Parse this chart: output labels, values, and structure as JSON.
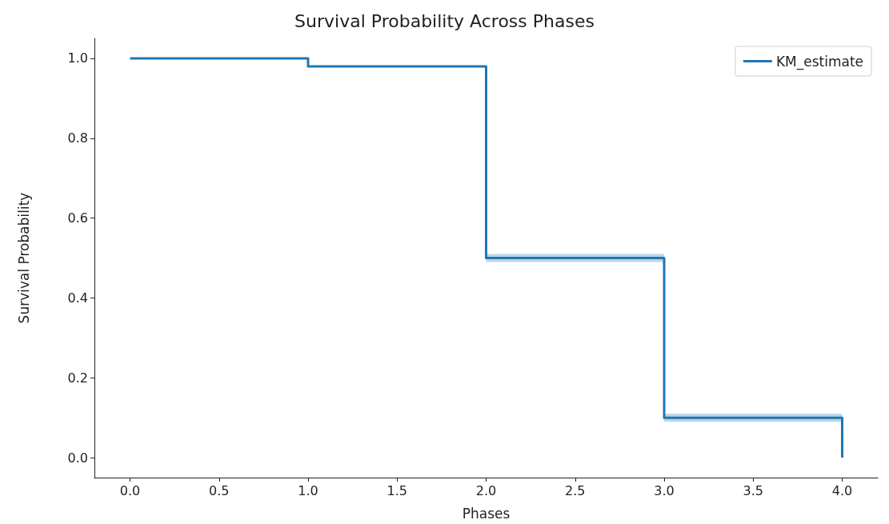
{
  "chart_data": {
    "type": "step",
    "title": "Survival Probability Across Phases",
    "xlabel": "Phases",
    "ylabel": "Survival Probability",
    "x": [
      0,
      1,
      2,
      3,
      4
    ],
    "series": [
      {
        "name": "KM_estimate",
        "color": "#1f77b4",
        "values": [
          1,
          0.98,
          0.5,
          0.1,
          0
        ],
        "lower": [
          1,
          0.98,
          0.49,
          0.09,
          0
        ],
        "upper": [
          1,
          0.98,
          0.51,
          0.11,
          0
        ]
      }
    ],
    "xlim": [
      -0.2,
      4.2
    ],
    "xticks": [
      {
        "value": 0,
        "label": "0.0"
      },
      0.5,
      {
        "value": 1,
        "label": "1.0"
      },
      1.5,
      {
        "value": 2,
        "label": "2.0"
      },
      2.5,
      {
        "value": 3,
        "label": "3.0"
      },
      3.5,
      {
        "value": 4,
        "label": "4.0"
      }
    ],
    "ylim": [
      -0.05,
      1.05
    ],
    "yticks": [
      {
        "value": 0,
        "label": "0.0"
      },
      0.2,
      0.4,
      0.6,
      0.8,
      {
        "value": 1,
        "label": "1.0"
      }
    ],
    "legend": "top right",
    "grid": false,
    "marker": "none",
    "line_style": "solid"
  }
}
